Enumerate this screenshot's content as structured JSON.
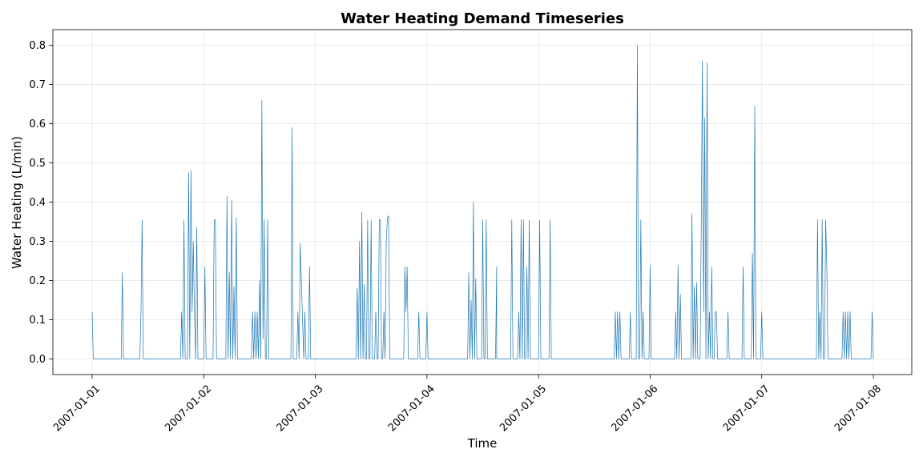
{
  "chart_data": {
    "type": "line",
    "title": "Water Heating Demand Timeseries",
    "xlabel": "Time",
    "ylabel": "Water Heating (L/min)",
    "x_ticks": [
      "2007-01-01",
      "2007-01-02",
      "2007-01-03",
      "2007-01-04",
      "2007-01-05",
      "2007-01-06",
      "2007-01-07",
      "2007-01-08"
    ],
    "y_ticks": [
      "0.0",
      "0.1",
      "0.2",
      "0.3",
      "0.4",
      "0.5",
      "0.6",
      "0.7",
      "0.8"
    ],
    "xlim": [
      "2006-12-31 15:30",
      "2008-01-08 11:30"
    ],
    "ylim": [
      -0.04,
      0.84
    ],
    "grid": true,
    "line_color": "#1f77b4",
    "series": [
      {
        "x": [
          "2007-01-01 00:00",
          "2007-01-01 00:15",
          "2007-01-01 00:30",
          "2007-01-01 06:15",
          "2007-01-01 06:30",
          "2007-01-01 06:45",
          "2007-01-01 10:15",
          "2007-01-01 10:30",
          "2007-01-01 10:45",
          "2007-01-01 11:00",
          "2007-01-01 19:00",
          "2007-01-01 19:15",
          "2007-01-01 19:30",
          "2007-01-01 19:45",
          "2007-01-01 20:00",
          "2007-01-01 20:30",
          "2007-01-01 20:45",
          "2007-01-01 21:00",
          "2007-01-01 21:15",
          "2007-01-01 21:30",
          "2007-01-01 21:45",
          "2007-01-01 22:00",
          "2007-01-01 22:15",
          "2007-01-01 22:30",
          "2007-01-01 22:45",
          "2007-01-01 23:00",
          "2007-01-01 23:15",
          "2007-01-01 23:30",
          "2007-01-01 23:45",
          "2007-01-02 00:00",
          "2007-01-02 00:15",
          "2007-01-02 00:30",
          "2007-01-02 02:00",
          "2007-01-02 02:15",
          "2007-01-02 02:30",
          "2007-01-02 02:45",
          "2007-01-02 04:45",
          "2007-01-02 05:00",
          "2007-01-02 05:15",
          "2007-01-02 05:30",
          "2007-01-02 05:45",
          "2007-01-02 06:00",
          "2007-01-02 06:15",
          "2007-01-02 06:30",
          "2007-01-02 06:45",
          "2007-01-02 07:00",
          "2007-01-02 07:15",
          "2007-01-02 07:30",
          "2007-01-02 07:45",
          "2007-01-02 08:00",
          "2007-01-02 10:15",
          "2007-01-02 10:30",
          "2007-01-02 10:45",
          "2007-01-02 11:00",
          "2007-01-02 11:15",
          "2007-01-02 11:30",
          "2007-01-02 11:45",
          "2007-01-02 12:00",
          "2007-01-02 12:15",
          "2007-01-02 12:30",
          "2007-01-02 12:45",
          "2007-01-02 13:00",
          "2007-01-02 13:15",
          "2007-01-02 13:30",
          "2007-01-02 13:45",
          "2007-01-02 14:00",
          "2007-01-02 14:15",
          "2007-01-02 14:30",
          "2007-01-02 14:45",
          "2007-01-02 18:45",
          "2007-01-02 19:00",
          "2007-01-02 19:15",
          "2007-01-02 20:00",
          "2007-01-02 20:15",
          "2007-01-02 20:30",
          "2007-01-02 20:45",
          "2007-01-02 21:30",
          "2007-01-02 21:45",
          "2007-01-02 22:00",
          "2007-01-02 22:30",
          "2007-01-02 22:45",
          "2007-01-02 23:00",
          "2007-01-03 08:45",
          "2007-01-03 09:00",
          "2007-01-03 09:15",
          "2007-01-03 09:30",
          "2007-01-03 09:45",
          "2007-01-03 10:00",
          "2007-01-03 10:15",
          "2007-01-03 10:30",
          "2007-01-03 10:45",
          "2007-01-03 11:00",
          "2007-01-03 11:15",
          "2007-01-03 11:30",
          "2007-01-03 11:45",
          "2007-01-03 12:00",
          "2007-01-03 12:15",
          "2007-01-03 12:30",
          "2007-01-03 12:45",
          "2007-01-03 13:00",
          "2007-01-03 13:15",
          "2007-01-03 13:30",
          "2007-01-03 13:45",
          "2007-01-03 14:00",
          "2007-01-03 14:15",
          "2007-01-03 14:30",
          "2007-01-03 14:45",
          "2007-01-03 15:00",
          "2007-01-03 15:15",
          "2007-01-03 15:30",
          "2007-01-03 15:45",
          "2007-01-03 16:00",
          "2007-01-03 16:15",
          "2007-01-03 16:30",
          "2007-01-03 16:45",
          "2007-01-03 19:00",
          "2007-01-03 19:15",
          "2007-01-03 19:30",
          "2007-01-03 19:45",
          "2007-01-03 20:00",
          "2007-01-03 22:00",
          "2007-01-03 22:15",
          "2007-01-03 22:30",
          "2007-01-03 23:45",
          "2007-01-04 00:00",
          "2007-01-04 00:15",
          "2007-01-04 08:45",
          "2007-01-04 09:00",
          "2007-01-04 09:15",
          "2007-01-04 09:30",
          "2007-01-04 09:45",
          "2007-01-04 10:00",
          "2007-01-04 10:15",
          "2007-01-04 10:30",
          "2007-01-04 10:45",
          "2007-01-04 11:45",
          "2007-01-04 12:00",
          "2007-01-04 12:15",
          "2007-01-04 12:30",
          "2007-01-04 12:45",
          "2007-01-04 13:00",
          "2007-01-04 13:15",
          "2007-01-04 14:45",
          "2007-01-04 15:00",
          "2007-01-04 15:15",
          "2007-01-04 14:45",
          "2007-01-04 15:00",
          "2007-01-04 18:00",
          "2007-01-04 18:15",
          "2007-01-04 18:30",
          "2007-01-04 19:30",
          "2007-01-04 19:45",
          "2007-01-04 20:00",
          "2007-01-04 20:15",
          "2007-01-04 20:30",
          "2007-01-04 20:45",
          "2007-01-04 21:00",
          "2007-01-04 21:15",
          "2007-01-04 21:30",
          "2007-01-04 21:45",
          "2007-01-04 22:00",
          "2007-01-04 22:15",
          "2007-01-05 00:00",
          "2007-01-05 00:15",
          "2007-01-05 00:30",
          "2007-01-05 02:15",
          "2007-01-05 02:30",
          "2007-01-05 02:45",
          "2007-01-05 16:15",
          "2007-01-05 16:30",
          "2007-01-05 16:45",
          "2007-01-05 17:00",
          "2007-01-05 17:15",
          "2007-01-05 17:30",
          "2007-01-05 17:45",
          "2007-01-05 18:00",
          "2007-01-05 19:30",
          "2007-01-05 19:45",
          "2007-01-05 20:00",
          "2007-01-05 21:00",
          "2007-01-05 21:15",
          "2007-01-05 21:30",
          "2007-01-05 21:45",
          "2007-01-05 22:00",
          "2007-01-05 22:15",
          "2007-01-05 22:30",
          "2007-01-05 22:45",
          "2007-01-05 23:00",
          "2007-01-05 23:45",
          "2007-01-06 00:00",
          "2007-01-06 00:15",
          "2007-01-06 05:15",
          "2007-01-06 05:30",
          "2007-01-06 05:45",
          "2007-01-06 06:00",
          "2007-01-06 06:15",
          "2007-01-06 06:30",
          "2007-01-06 06:45",
          "2007-01-06 08:45",
          "2007-01-06 09:00",
          "2007-01-06 09:15",
          "2007-01-06 09:30",
          "2007-01-06 09:45",
          "2007-01-06 10:00",
          "2007-01-06 10:15",
          "2007-01-06 10:30",
          "2007-01-06 10:45",
          "2007-01-06 11:00",
          "2007-01-06 11:15",
          "2007-01-06 11:30",
          "2007-01-06 11:45",
          "2007-01-06 12:00",
          "2007-01-06 12:15",
          "2007-01-06 12:30",
          "2007-01-06 12:45",
          "2007-01-06 13:00",
          "2007-01-06 13:15",
          "2007-01-06 13:30",
          "2007-01-06 13:45",
          "2007-01-06 14:00",
          "2007-01-06 14:15",
          "2007-01-06 14:30",
          "2007-01-06 16:30",
          "2007-01-06 16:45",
          "2007-01-06 17:00",
          "2007-01-06 19:45",
          "2007-01-06 20:00",
          "2007-01-06 20:15",
          "2007-01-06 21:45",
          "2007-01-06 22:00",
          "2007-01-06 22:15",
          "2007-01-06 22:30",
          "2007-01-06 22:45",
          "2007-01-06 23:45",
          "2007-01-07 00:00",
          "2007-01-07 00:15",
          "2007-01-07 11:45",
          "2007-01-07 12:00",
          "2007-01-07 12:15",
          "2007-01-07 12:30",
          "2007-01-07 12:45",
          "2007-01-07 13:00",
          "2007-01-07 13:15",
          "2007-01-07 13:30",
          "2007-01-07 13:45",
          "2007-01-07 14:00",
          "2007-01-07 14:15",
          "2007-01-07 14:30",
          "2007-01-07 17:15",
          "2007-01-07 17:30",
          "2007-01-07 17:45",
          "2007-01-07 18:00",
          "2007-01-07 18:15",
          "2007-01-07 18:30",
          "2007-01-07 18:45",
          "2007-01-07 19:00",
          "2007-01-07 19:15",
          "2007-01-07 19:30",
          "2007-01-07 23:30",
          "2007-01-07 23:45",
          "2007-01-08 00:00"
        ],
        "values": [
          0.12,
          0.0,
          0.0,
          0.0,
          0.22,
          0.0,
          0.0,
          0.12,
          0.355,
          0.0,
          0.0,
          0.12,
          0.0,
          0.355,
          0.0,
          0.0,
          0.475,
          0.0,
          0.48,
          0.12,
          0.3,
          0.12,
          0.0,
          0.335,
          0.0,
          0.0,
          0.0,
          0.0,
          0.0,
          0.0,
          0.235,
          0.0,
          0.0,
          0.355,
          0.355,
          0.0,
          0.0,
          0.415,
          0.0,
          0.22,
          0.0,
          0.405,
          0.0,
          0.185,
          0.0,
          0.36,
          0.0,
          0.0,
          0.0,
          0.0,
          0.0,
          0.12,
          0.0,
          0.12,
          0.0,
          0.12,
          0.0,
          0.2,
          0.0,
          0.66,
          0.05,
          0.355,
          0.0,
          0.0,
          0.355,
          0.0,
          0.0,
          0.0,
          0.0,
          0.0,
          0.59,
          0.0,
          0.0,
          0.12,
          0.0,
          0.295,
          0.0,
          0.12,
          0.0,
          0.0,
          0.235,
          0.0,
          0.0,
          0.18,
          0.0,
          0.3,
          0.0,
          0.375,
          0.0,
          0.19,
          0.0,
          0.0,
          0.355,
          0.0,
          0.0,
          0.355,
          0.0,
          0.0,
          0.0,
          0.12,
          0.0,
          0.0,
          0.355,
          0.355,
          0.0,
          0.0,
          0.12,
          0.0,
          0.3,
          0.36,
          0.365,
          0.0,
          0.0,
          0.0,
          0.0,
          0.0,
          0.235,
          0.12,
          0.235,
          0.0,
          0.0,
          0.12,
          0.0,
          0.0,
          0.12,
          0.0,
          0.0,
          0.22,
          0.0,
          0.15,
          0.0,
          0.4,
          0.0,
          0.205,
          0.0,
          0.0,
          0.355,
          0.0,
          0.0,
          0.355,
          0.0,
          0.0,
          0.0,
          0.235,
          0.0,
          0.0,
          0.0,
          0.0,
          0.355,
          0.0,
          0.0,
          0.12,
          0.0,
          0.355,
          0.0,
          0.355,
          0.0,
          0.0,
          0.235,
          0.0,
          0.355,
          0.0,
          0.0,
          0.355,
          0.0,
          0.0,
          0.355,
          0.0,
          0.0,
          0.12,
          0.0,
          0.12,
          0.0,
          0.12,
          0.0,
          0.0,
          0.0,
          0.12,
          0.0,
          0.0,
          0.8,
          0.0,
          0.0,
          0.355,
          0.0,
          0.12,
          0.0,
          0.0,
          0.0,
          0.24,
          0.0,
          0.0,
          0.12,
          0.0,
          0.24,
          0.0,
          0.165,
          0.0,
          0.0,
          0.37,
          0.0,
          0.185,
          0.0,
          0.195,
          0.0,
          0.0,
          0.0,
          0.355,
          0.76,
          0.12,
          0.615,
          0.0,
          0.755,
          0.0,
          0.12,
          0.0,
          0.235,
          0.0,
          0.0,
          0.12,
          0.12,
          0.0,
          0.0,
          0.12,
          0.0,
          0.0,
          0.235,
          0.0,
          0.0,
          0.27,
          0.0,
          0.645,
          0.0,
          0.0,
          0.12,
          0.0,
          0.0,
          0.355,
          0.0,
          0.12,
          0.0,
          0.355,
          0.0,
          0.0,
          0.355,
          0.235,
          0.0,
          0.0,
          0.0,
          0.12,
          0.0,
          0.12,
          0.0,
          0.12,
          0.0,
          0.12,
          0.0,
          0.0,
          0.0,
          0.12,
          0.0
        ]
      }
    ]
  }
}
